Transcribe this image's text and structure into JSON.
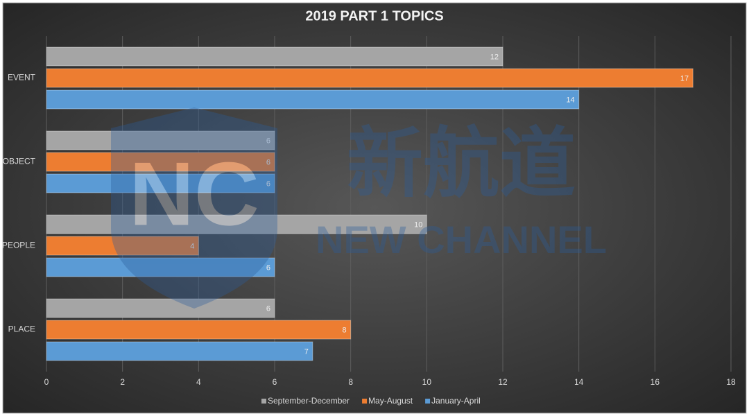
{
  "chart_data": {
    "type": "bar",
    "orientation": "horizontal",
    "title": "2019 PART 1 TOPICS",
    "categories": [
      "EVENT",
      "OBJECT",
      "PEOPLE",
      "PLACE"
    ],
    "series": [
      {
        "name": "September-December",
        "color": "#a5a5a5",
        "values": [
          12,
          6,
          10,
          6
        ]
      },
      {
        "name": "May-August",
        "color": "#ed7d31",
        "values": [
          17,
          6,
          4,
          8
        ]
      },
      {
        "name": "January-April",
        "color": "#5b9bd5",
        "values": [
          14,
          6,
          6,
          7
        ]
      }
    ],
    "xlim": [
      0,
      18
    ],
    "xticks": [
      0,
      2,
      4,
      6,
      8,
      10,
      12,
      14,
      16,
      18
    ],
    "grid": true,
    "legend": "bottom"
  },
  "watermark": {
    "logo": "NC",
    "brand": "新航道",
    "brand_en": "NEW CHANNEL"
  }
}
